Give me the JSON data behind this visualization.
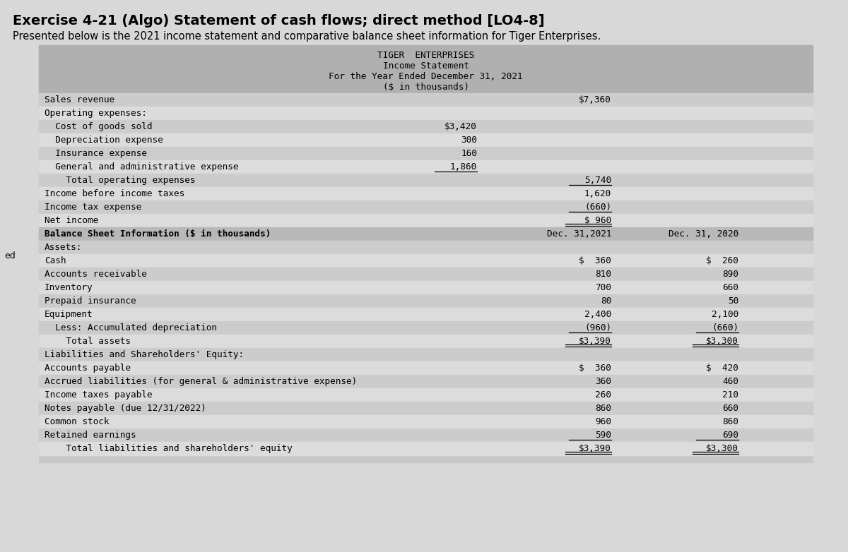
{
  "title_main": "Exercise 4-21 (Algo) Statement of cash flows; direct method [LO4-8]",
  "subtitle": "Presented below is the 2021 income statement and comparative balance sheet information for Tiger Enterprises.",
  "company_name": "TIGER  ENTERPRISES",
  "statement_title": "Income Statement",
  "period": "For the Year Ended December 31, 2021",
  "units": "($ in thousands)",
  "page_bg": "#d8d8d8",
  "outer_bg": "#c8c8c8",
  "table_bg": "#e0e0e0",
  "header_bg": "#b0b0b0",
  "row_dark": "#cccccc",
  "row_light": "#dcdcdc",
  "bs_header_bg": "#b8b8b8",
  "income_statement": [
    {
      "label": "Sales revenue",
      "col1": "",
      "col2": "$7,360",
      "indent": 0,
      "ul1": false,
      "ul2": false,
      "double_ul2": false
    },
    {
      "label": "Operating expenses:",
      "col1": "",
      "col2": "",
      "indent": 0,
      "ul1": false,
      "ul2": false,
      "double_ul2": false
    },
    {
      "label": "  Cost of goods sold",
      "col1": "$3,420",
      "col2": "",
      "indent": 0,
      "ul1": false,
      "ul2": false,
      "double_ul2": false
    },
    {
      "label": "  Depreciation expense",
      "col1": "300",
      "col2": "",
      "indent": 0,
      "ul1": false,
      "ul2": false,
      "double_ul2": false
    },
    {
      "label": "  Insurance expense",
      "col1": "160",
      "col2": "",
      "indent": 0,
      "ul1": false,
      "ul2": false,
      "double_ul2": false
    },
    {
      "label": "  General and administrative expense",
      "col1": "1,860",
      "col2": "",
      "indent": 0,
      "ul1": true,
      "ul2": false,
      "double_ul2": false
    },
    {
      "label": "    Total operating expenses",
      "col1": "",
      "col2": "5,740",
      "indent": 0,
      "ul1": false,
      "ul2": true,
      "double_ul2": false
    },
    {
      "label": "Income before income taxes",
      "col1": "",
      "col2": "1,620",
      "indent": 0,
      "ul1": false,
      "ul2": false,
      "double_ul2": false
    },
    {
      "label": "Income tax expense",
      "col1": "",
      "col2": "(660)",
      "indent": 0,
      "ul1": false,
      "ul2": true,
      "double_ul2": false
    },
    {
      "label": "Net income",
      "col1": "",
      "col2": "$ 960",
      "indent": 0,
      "ul1": false,
      "ul2": false,
      "double_ul2": true
    }
  ],
  "balance_sheet_header": "Balance Sheet Information ($ in thousands)",
  "col_header_2021": "Dec. 31,2021",
  "col_header_2020": "Dec. 31, 2020",
  "balance_sheet": [
    {
      "label": "Assets:",
      "col1": "",
      "col2": "",
      "ul1": false,
      "ul2": false,
      "double_ul1": false,
      "double_ul2": false
    },
    {
      "label": "Cash",
      "col1": "$  360",
      "col2": "$  260",
      "ul1": false,
      "ul2": false,
      "double_ul1": false,
      "double_ul2": false
    },
    {
      "label": "Accounts receivable",
      "col1": "810",
      "col2": "890",
      "ul1": false,
      "ul2": false,
      "double_ul1": false,
      "double_ul2": false
    },
    {
      "label": "Inventory",
      "col1": "700",
      "col2": "660",
      "ul1": false,
      "ul2": false,
      "double_ul1": false,
      "double_ul2": false
    },
    {
      "label": "Prepaid insurance",
      "col1": "80",
      "col2": "50",
      "ul1": false,
      "ul2": false,
      "double_ul1": false,
      "double_ul2": false
    },
    {
      "label": "Equipment",
      "col1": "2,400",
      "col2": "2,100",
      "ul1": false,
      "ul2": false,
      "double_ul1": false,
      "double_ul2": false
    },
    {
      "label": "  Less: Accumulated depreciation",
      "col1": "(960)",
      "col2": "(660)",
      "ul1": true,
      "ul2": true,
      "double_ul1": false,
      "double_ul2": false
    },
    {
      "label": "    Total assets",
      "col1": "$3,390",
      "col2": "$3,300",
      "ul1": false,
      "ul2": false,
      "double_ul1": true,
      "double_ul2": true
    },
    {
      "label": "Liabilities and Shareholders' Equity:",
      "col1": "",
      "col2": "",
      "ul1": false,
      "ul2": false,
      "double_ul1": false,
      "double_ul2": false
    },
    {
      "label": "Accounts payable",
      "col1": "$  360",
      "col2": "$  420",
      "ul1": false,
      "ul2": false,
      "double_ul1": false,
      "double_ul2": false
    },
    {
      "label": "Accrued liabilities (for general & administrative expense)",
      "col1": "360",
      "col2": "460",
      "ul1": false,
      "ul2": false,
      "double_ul1": false,
      "double_ul2": false
    },
    {
      "label": "Income taxes payable",
      "col1": "260",
      "col2": "210",
      "ul1": false,
      "ul2": false,
      "double_ul1": false,
      "double_ul2": false
    },
    {
      "label": "Notes payable (due 12/31/2022)",
      "col1": "860",
      "col2": "660",
      "ul1": false,
      "ul2": false,
      "double_ul1": false,
      "double_ul2": false
    },
    {
      "label": "Common stock",
      "col1": "960",
      "col2": "860",
      "ul1": false,
      "ul2": false,
      "double_ul1": false,
      "double_ul2": false
    },
    {
      "label": "Retained earnings",
      "col1": "590",
      "col2": "690",
      "ul1": true,
      "ul2": true,
      "double_ul1": false,
      "double_ul2": false
    },
    {
      "label": "    Total liabilities and shareholders' equity",
      "col1": "$3,390",
      "col2": "$3,300",
      "ul1": false,
      "ul2": false,
      "double_ul1": true,
      "double_ul2": true
    }
  ],
  "font_family": "monospace",
  "main_title_fontsize": 14,
  "subtitle_fontsize": 10.5,
  "table_fontsize": 9.2,
  "ed_text": "ed",
  "ed_fontsize": 9
}
